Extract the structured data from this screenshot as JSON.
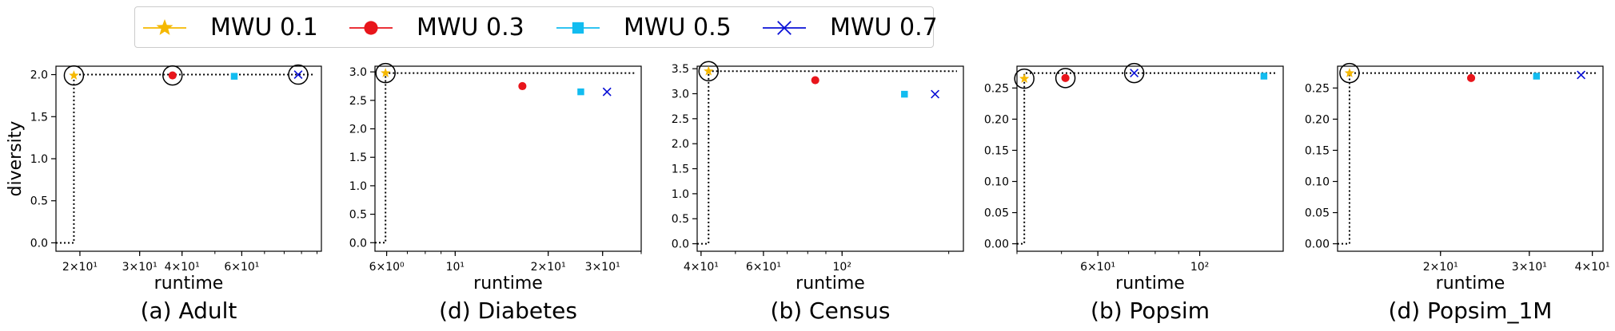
{
  "legend": {
    "items": [
      {
        "label": "MWU 0.1",
        "color": "#f5b800",
        "marker": "star"
      },
      {
        "label": "MWU 0.3",
        "color": "#e8151b",
        "marker": "circle"
      },
      {
        "label": "MWU 0.5",
        "color": "#12bcf0",
        "marker": "square"
      },
      {
        "label": "MWU 0.7",
        "color": "#0a10d6",
        "marker": "x"
      }
    ]
  },
  "chart_data": [
    {
      "type": "scatter",
      "caption": "(a) Adult",
      "xlabel": "runtime",
      "ylabel": "diversity",
      "xscale": "log",
      "xlim": [
        17,
        103
      ],
      "ylim": [
        -0.1,
        2.1
      ],
      "xticks": [
        {
          "value": 20,
          "label": "2×10¹"
        },
        {
          "value": 30,
          "label": "3×10¹"
        },
        {
          "value": 40,
          "label": "4×10¹"
        },
        {
          "value": 60,
          "label": "6×10¹"
        }
      ],
      "yticks": [
        {
          "value": 0.0,
          "label": "0.0"
        },
        {
          "value": 0.5,
          "label": "0.5"
        },
        {
          "value": 1.0,
          "label": "1.0"
        },
        {
          "value": 1.5,
          "label": "1.5"
        },
        {
          "value": 2.0,
          "label": "2.0"
        }
      ],
      "series": [
        {
          "name": "MWU 0.1",
          "x": 19.2,
          "y": 1.99
        },
        {
          "name": "MWU 0.3",
          "x": 37.5,
          "y": 1.99
        },
        {
          "name": "MWU 0.5",
          "x": 57,
          "y": 1.98
        },
        {
          "name": "MWU 0.7",
          "x": 88,
          "y": 2.0
        }
      ],
      "highlighted": [
        "MWU 0.1",
        "MWU 0.3",
        "MWU 0.7"
      ]
    },
    {
      "type": "scatter",
      "caption": "(d) Diabetes",
      "xlabel": "runtime",
      "ylabel": "",
      "xscale": "log",
      "xlim": [
        5.5,
        40
      ],
      "ylim": [
        -0.15,
        3.1
      ],
      "xticks": [
        {
          "value": 6,
          "label": "6×10⁰"
        },
        {
          "value": 10,
          "label": "10¹"
        },
        {
          "value": 20,
          "label": "2×10¹"
        },
        {
          "value": 30,
          "label": "3×10¹"
        }
      ],
      "yticks": [
        {
          "value": 0.0,
          "label": "0.0"
        },
        {
          "value": 0.5,
          "label": "0.5"
        },
        {
          "value": 1.0,
          "label": "1.0"
        },
        {
          "value": 1.5,
          "label": "1.5"
        },
        {
          "value": 2.0,
          "label": "2.0"
        },
        {
          "value": 2.5,
          "label": "2.5"
        },
        {
          "value": 3.0,
          "label": "3.0"
        }
      ],
      "series": [
        {
          "name": "MWU 0.1",
          "x": 5.95,
          "y": 2.98
        },
        {
          "name": "MWU 0.3",
          "x": 16.5,
          "y": 2.75
        },
        {
          "name": "MWU 0.5",
          "x": 25.5,
          "y": 2.65
        },
        {
          "name": "MWU 0.7",
          "x": 31,
          "y": 2.65
        }
      ],
      "highlighted": [
        "MWU 0.1"
      ]
    },
    {
      "type": "scatter",
      "caption": "(b) Census",
      "xlabel": "runtime",
      "ylabel": "",
      "xscale": "log",
      "xlim": [
        39,
        220
      ],
      "ylim": [
        -0.15,
        3.55
      ],
      "xticks": [
        {
          "value": 40,
          "label": "4×10¹"
        },
        {
          "value": 60,
          "label": "6×10¹"
        },
        {
          "value": 100,
          "label": "10²"
        }
      ],
      "yticks": [
        {
          "value": 0.0,
          "label": "0.0"
        },
        {
          "value": 0.5,
          "label": "0.5"
        },
        {
          "value": 1.0,
          "label": "1.0"
        },
        {
          "value": 1.5,
          "label": "1.5"
        },
        {
          "value": 2.0,
          "label": "2.0"
        },
        {
          "value": 2.5,
          "label": "2.5"
        },
        {
          "value": 3.0,
          "label": "3.0"
        },
        {
          "value": 3.5,
          "label": "3.5"
        }
      ],
      "series": [
        {
          "name": "MWU 0.1",
          "x": 42,
          "y": 3.45
        },
        {
          "name": "MWU 0.3",
          "x": 84,
          "y": 3.27
        },
        {
          "name": "MWU 0.5",
          "x": 150,
          "y": 2.99
        },
        {
          "name": "MWU 0.7",
          "x": 183,
          "y": 2.99
        }
      ],
      "highlighted": [
        "MWU 0.1"
      ]
    },
    {
      "type": "scatter",
      "caption": "(b) Popsim",
      "xlabel": "runtime",
      "ylabel": "",
      "xscale": "log",
      "xlim": [
        40,
        152
      ],
      "ylim": [
        -0.012,
        0.285
      ],
      "xticks": [
        {
          "value": 60,
          "label": "6×10¹"
        },
        {
          "value": 100,
          "label": "10²"
        }
      ],
      "yticks": [
        {
          "value": 0.0,
          "label": "0.00"
        },
        {
          "value": 0.05,
          "label": "0.05"
        },
        {
          "value": 0.1,
          "label": "0.10"
        },
        {
          "value": 0.15,
          "label": "0.15"
        },
        {
          "value": 0.2,
          "label": "0.20"
        },
        {
          "value": 0.25,
          "label": "0.25"
        }
      ],
      "series": [
        {
          "name": "MWU 0.1",
          "x": 41.5,
          "y": 0.265
        },
        {
          "name": "MWU 0.3",
          "x": 51,
          "y": 0.266
        },
        {
          "name": "MWU 0.5",
          "x": 138,
          "y": 0.269
        },
        {
          "name": "MWU 0.7",
          "x": 72,
          "y": 0.274
        }
      ],
      "highlighted": [
        "MWU 0.1",
        "MWU 0.3",
        "MWU 0.7"
      ]
    },
    {
      "type": "scatter",
      "caption": "(d) Popsim_1M",
      "xlabel": "runtime",
      "ylabel": "",
      "xscale": "log",
      "xlim": [
        12.5,
        42
      ],
      "ylim": [
        -0.012,
        0.285
      ],
      "xticks": [
        {
          "value": 20,
          "label": "2×10¹"
        },
        {
          "value": 30,
          "label": "3×10¹"
        },
        {
          "value": 40,
          "label": "4×10¹"
        }
      ],
      "yticks": [
        {
          "value": 0.0,
          "label": "0.00"
        },
        {
          "value": 0.05,
          "label": "0.05"
        },
        {
          "value": 0.1,
          "label": "0.10"
        },
        {
          "value": 0.15,
          "label": "0.15"
        },
        {
          "value": 0.2,
          "label": "0.20"
        },
        {
          "value": 0.25,
          "label": "0.25"
        }
      ],
      "series": [
        {
          "name": "MWU 0.1",
          "x": 13.2,
          "y": 0.274
        },
        {
          "name": "MWU 0.3",
          "x": 23,
          "y": 0.266
        },
        {
          "name": "MWU 0.5",
          "x": 31,
          "y": 0.269
        },
        {
          "name": "MWU 0.7",
          "x": 38,
          "y": 0.271
        }
      ],
      "highlighted": [
        "MWU 0.1"
      ]
    }
  ]
}
